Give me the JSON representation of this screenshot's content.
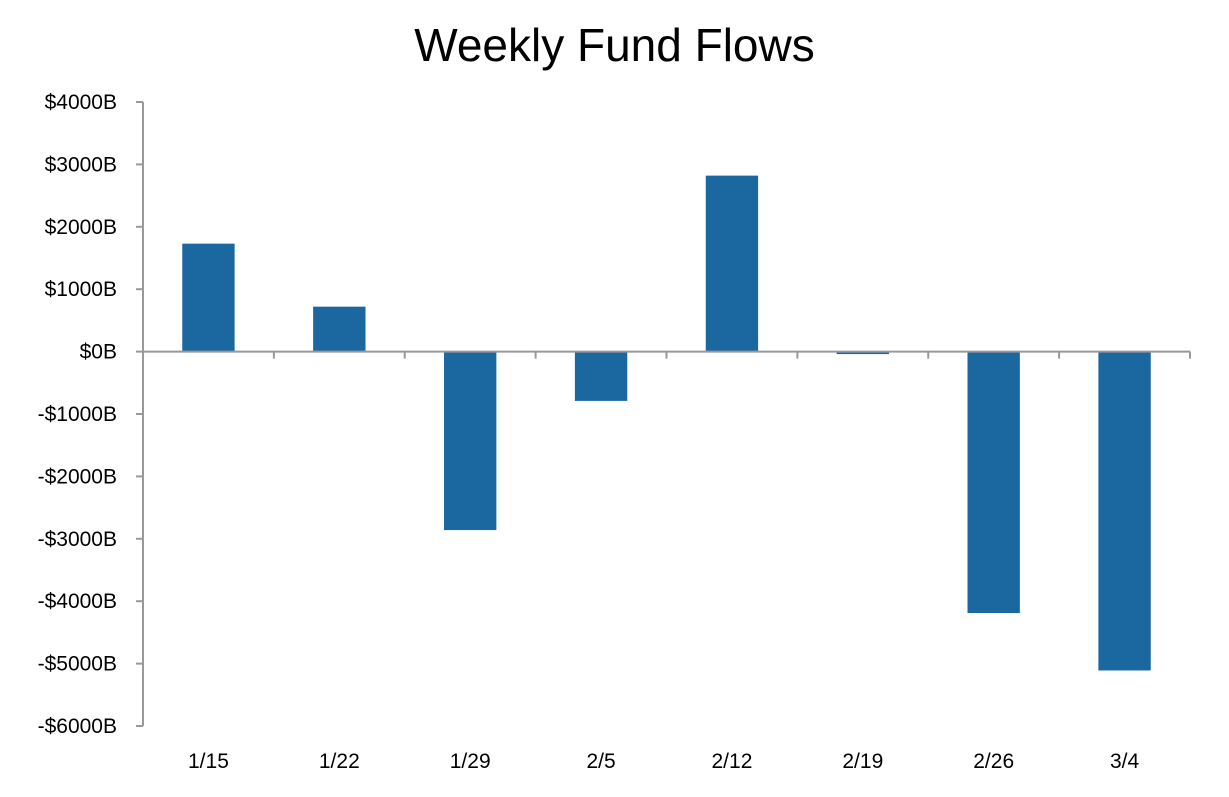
{
  "chart_data": {
    "type": "bar",
    "title": "Weekly Fund Flows",
    "xlabel": "",
    "ylabel": "",
    "categories": [
      "1/15",
      "1/22",
      "1/29",
      "2/5",
      "2/12",
      "2/19",
      "2/26",
      "3/4"
    ],
    "values": [
      1730,
      720,
      -2860,
      -790,
      2820,
      -40,
      -4190,
      -5110
    ],
    "ylim": [
      -6000,
      4000
    ],
    "y_ticks": [
      4000,
      3000,
      2000,
      1000,
      0,
      -1000,
      -2000,
      -3000,
      -4000,
      -5000,
      -6000
    ],
    "y_tick_labels": [
      "$4000B",
      "$3000B",
      "$2000B",
      "$1000B",
      "$0B",
      "-$1000B",
      "-$2000B",
      "-$3000B",
      "-$4000B",
      "-$5000B",
      "-$6000B"
    ],
    "grid": false,
    "legend": "none",
    "bar_color": "#1B67A0",
    "axis_color": "#999999"
  }
}
